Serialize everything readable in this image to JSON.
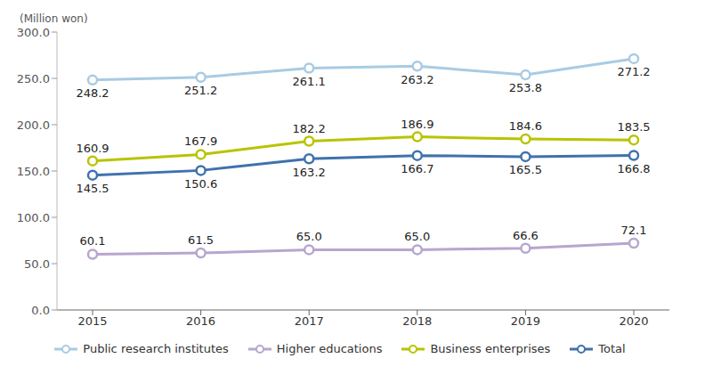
{
  "chart_data": {
    "type": "line",
    "ylabel": "(Million won)",
    "categories": [
      "2015",
      "2016",
      "2017",
      "2018",
      "2019",
      "2020"
    ],
    "series": [
      {
        "name": "Public research institutes",
        "color": "#a9cbe3",
        "values": [
          248.2,
          251.2,
          261.1,
          263.2,
          253.8,
          271.2
        ]
      },
      {
        "name": "Higher educations",
        "color": "#b7a6cf",
        "values": [
          60.1,
          61.5,
          65.0,
          65.0,
          66.6,
          72.1
        ],
        "value_labels": [
          "60.1",
          "61.5",
          "65.0",
          "65.0",
          "66.6",
          "72.1"
        ]
      },
      {
        "name": "Business enterprises",
        "color": "#b8c400",
        "values": [
          160.9,
          167.9,
          182.2,
          186.9,
          184.6,
          183.5
        ]
      },
      {
        "name": "Total",
        "color": "#3f72ad",
        "values": [
          145.5,
          150.6,
          163.2,
          166.7,
          165.5,
          166.8
        ]
      }
    ],
    "ylim": [
      0,
      300
    ],
    "yticks": [
      {
        "value": 0,
        "label": "0.0"
      },
      {
        "value": 50,
        "label": "50.0"
      },
      {
        "value": 100,
        "label": "100.0"
      },
      {
        "value": 150,
        "label": "150.0"
      },
      {
        "value": 200,
        "label": "200.0"
      },
      {
        "value": 250,
        "label": "250.0"
      },
      {
        "value": 300,
        "label": "300.0"
      }
    ],
    "grid": false,
    "legend": "bottom",
    "data_labels": true
  }
}
